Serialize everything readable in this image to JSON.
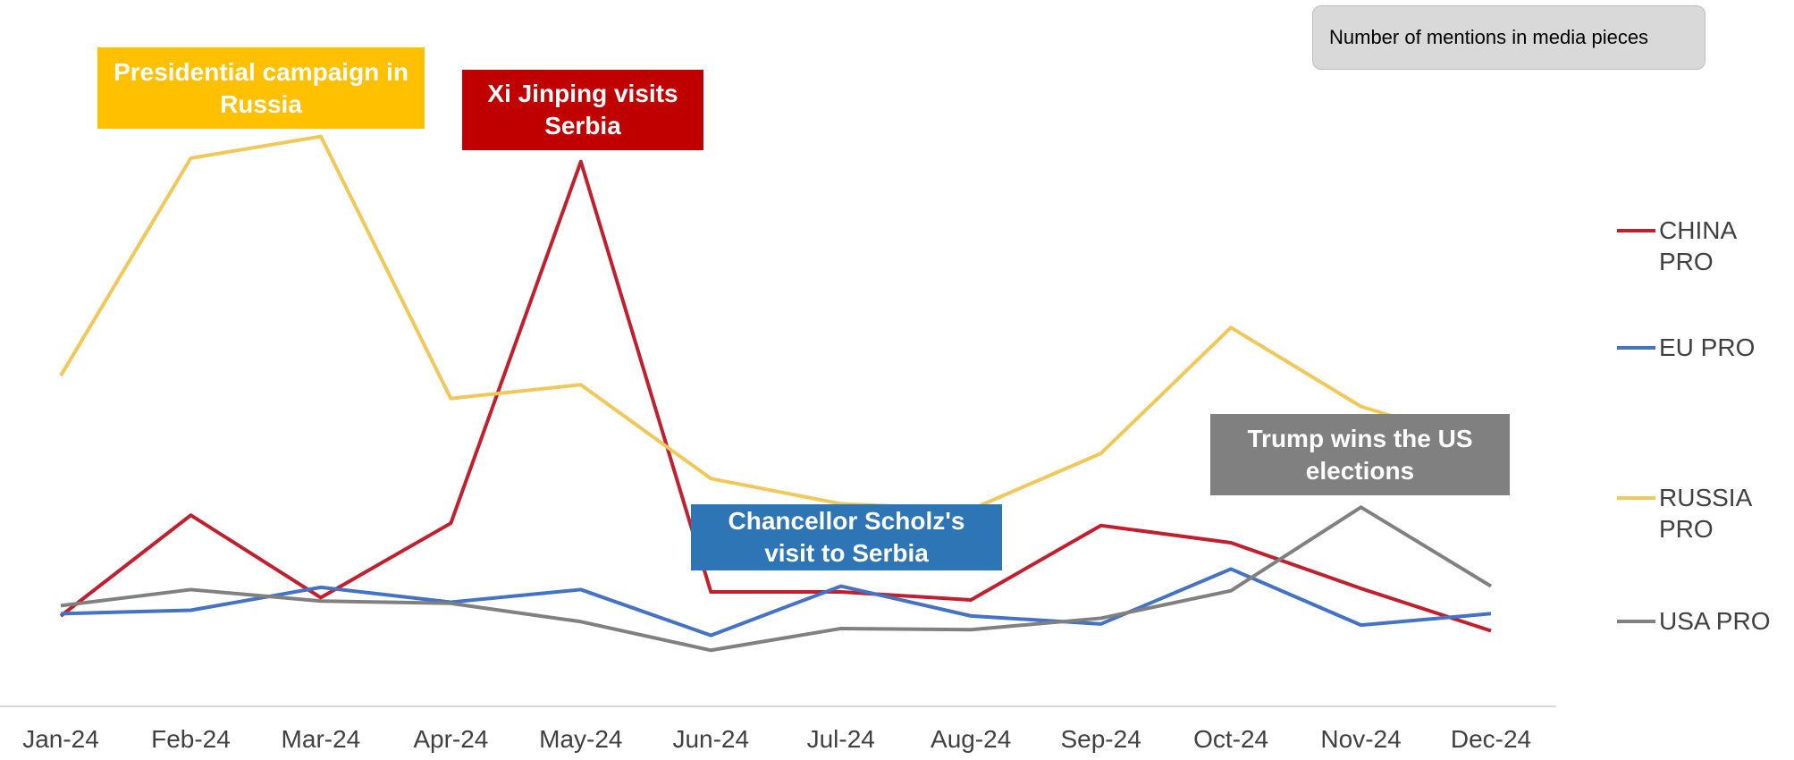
{
  "chart_data": {
    "type": "line",
    "subtitle": "Number of mentions in media pieces",
    "categories": [
      "Jan-24",
      "Feb-24",
      "Mar-24",
      "Apr-24",
      "May-24",
      "Jun-24",
      "Jul-24",
      "Aug-24",
      "Sep-24",
      "Oct-24",
      "Nov-24",
      "Dec-24"
    ],
    "series": [
      {
        "name": "CHINA PRO",
        "color": "#c0202e",
        "values": [
          15.8,
          33.4,
          19,
          32,
          95.2,
          20,
          20,
          18.6,
          31.6,
          28.6,
          20.6,
          13.2
        ]
      },
      {
        "name": "EU PRO",
        "color": "#4472c4",
        "values": [
          16.2,
          16.8,
          20.8,
          18.2,
          20.4,
          12.4,
          21,
          15.8,
          14.4,
          24,
          14.2,
          16.2
        ]
      },
      {
        "name": "RUSSIA PRO",
        "color": "#f0c85a",
        "values": [
          57.8,
          95.8,
          99.6,
          53.8,
          56.2,
          39.8,
          35.4,
          34.4,
          44.2,
          66.2,
          52.4,
          45.4
        ]
      },
      {
        "name": "USA PRO",
        "color": "#808080",
        "values": [
          17.6,
          20.4,
          18.4,
          18,
          14.8,
          9.8,
          13.6,
          13.4,
          15.4,
          20.2,
          34.8,
          21
        ]
      }
    ],
    "ylim": [
      0,
      100
    ],
    "annotations": [
      {
        "text": "Presidential campaign in Russia",
        "color": "#ffc000"
      },
      {
        "text": "Xi Jinping visits Serbia",
        "color": "#c00000"
      },
      {
        "text": "Chancellor Scholz's visit to Serbia",
        "color": "#2e75b6"
      },
      {
        "text": "Trump wins the US elections",
        "color": "#808080"
      }
    ],
    "legend": "right"
  }
}
